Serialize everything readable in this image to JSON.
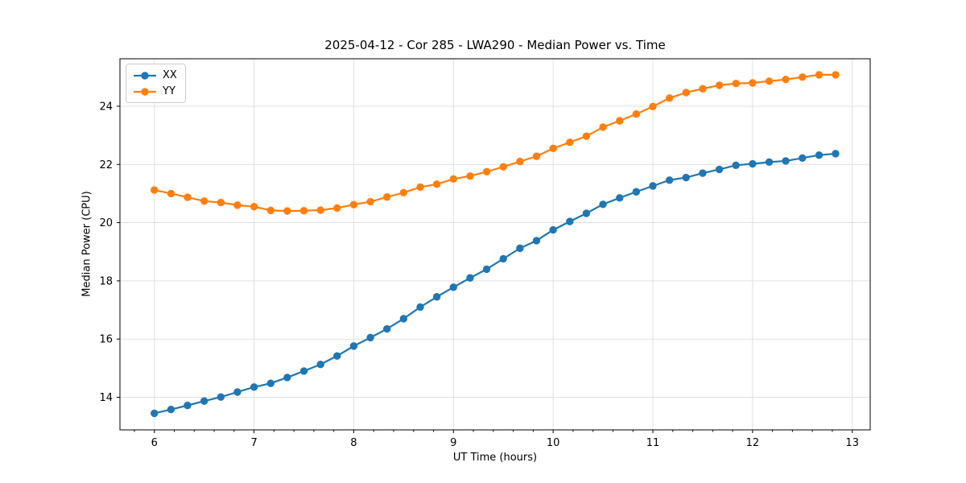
{
  "chart_data": {
    "type": "line",
    "title": "2025-04-12 - Cor 285 - LWA290 - Median Power vs. Time",
    "xlabel": "UT Time (hours)",
    "ylabel": "Median Power (CPU)",
    "xlim": [
      5.655,
      13.18
    ],
    "ylim": [
      12.88,
      25.63
    ],
    "xticks": [
      6,
      7,
      8,
      9,
      10,
      11,
      12,
      13
    ],
    "yticks": [
      14,
      16,
      18,
      20,
      22,
      24
    ],
    "x_minor_tick_step": 0.2,
    "grid": true,
    "legend_position": "upper-left",
    "marker": "circle",
    "x": [
      6.0,
      6.167,
      6.333,
      6.5,
      6.667,
      6.833,
      7.0,
      7.167,
      7.333,
      7.5,
      7.667,
      7.833,
      8.0,
      8.167,
      8.333,
      8.5,
      8.667,
      8.833,
      9.0,
      9.167,
      9.333,
      9.5,
      9.667,
      9.833,
      10.0,
      10.167,
      10.333,
      10.5,
      10.667,
      10.833,
      11.0,
      11.167,
      11.333,
      11.5,
      11.667,
      11.833,
      12.0,
      12.167,
      12.333,
      12.5,
      12.667,
      12.833
    ],
    "series": [
      {
        "name": "XX",
        "color": "#1f77b4",
        "values": [
          13.45,
          13.58,
          13.72,
          13.87,
          14.01,
          14.18,
          14.35,
          14.48,
          14.68,
          14.9,
          15.13,
          15.42,
          15.76,
          16.05,
          16.35,
          16.7,
          17.1,
          17.45,
          17.78,
          18.1,
          18.4,
          18.76,
          19.12,
          19.38,
          19.75,
          20.04,
          20.32,
          20.63,
          20.85,
          21.06,
          21.26,
          21.46,
          21.55,
          21.7,
          21.83,
          21.97,
          22.02,
          22.08,
          22.12,
          22.22,
          22.32,
          22.37
        ]
      },
      {
        "name": "YY",
        "color": "#ff7f0e",
        "values": [
          21.12,
          21.0,
          20.87,
          20.74,
          20.69,
          20.6,
          20.55,
          20.42,
          20.4,
          20.41,
          20.43,
          20.5,
          20.62,
          20.72,
          20.88,
          21.03,
          21.22,
          21.32,
          21.5,
          21.6,
          21.75,
          21.92,
          22.1,
          22.28,
          22.55,
          22.76,
          22.97,
          23.28,
          23.5,
          23.73,
          23.99,
          24.28,
          24.47,
          24.6,
          24.72,
          24.78,
          24.8,
          24.86,
          24.92,
          25.0,
          25.08,
          25.08
        ]
      }
    ],
    "style": {
      "grid_color": "#e0e0e0",
      "spine_color": "#000000",
      "tick_color": "#000000",
      "background": "#ffffff",
      "line_width": 2.2,
      "marker_radius": 4.7
    }
  }
}
